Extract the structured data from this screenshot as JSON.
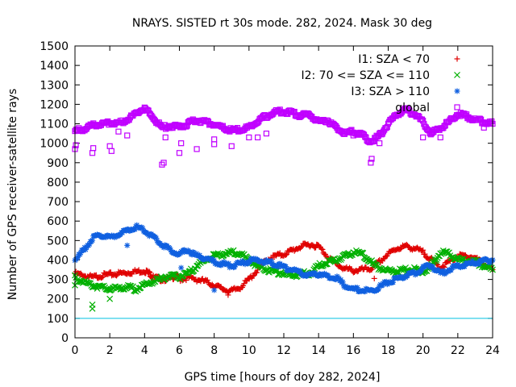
{
  "chart_data": {
    "type": "scatter",
    "title": "NRAYS. SISTED rt 30s mode. 282, 2024. Mask 30 deg",
    "xlabel": "GPS time [hours of doy 282, 2024]",
    "ylabel": "Number of GPS receiver-satellite rays",
    "xlim": [
      0,
      24
    ],
    "ylim": [
      0,
      1500
    ],
    "xticks": [
      0,
      2,
      4,
      6,
      8,
      10,
      12,
      14,
      16,
      18,
      20,
      22,
      24
    ],
    "yticks": [
      0,
      100,
      200,
      300,
      400,
      500,
      600,
      700,
      800,
      900,
      1000,
      1100,
      1200,
      1300,
      1400,
      1500
    ],
    "legend_position": "top-right",
    "reference_line": {
      "y": 100,
      "color": "#00c0e0"
    },
    "series": [
      {
        "name": "I1: SZA < 70",
        "marker": "+",
        "color": "#e00000",
        "points": [
          [
            0,
            330
          ],
          [
            0.5,
            320
          ],
          [
            1,
            310
          ],
          [
            1.5,
            320
          ],
          [
            2,
            325
          ],
          [
            2.5,
            330
          ],
          [
            3,
            335
          ],
          [
            3.5,
            340
          ],
          [
            4,
            345
          ],
          [
            4.3,
            330
          ],
          [
            4.5,
            310
          ],
          [
            5,
            300
          ],
          [
            5.5,
            305
          ],
          [
            5.8,
            320
          ],
          [
            6,
            300
          ],
          [
            6.5,
            310
          ],
          [
            7,
            300
          ],
          [
            7.5,
            290
          ],
          [
            8,
            270
          ],
          [
            8.5,
            250
          ],
          [
            9,
            240
          ],
          [
            9.5,
            260
          ],
          [
            10,
            300
          ],
          [
            10.5,
            350
          ],
          [
            11,
            400
          ],
          [
            11.5,
            420
          ],
          [
            12,
            430
          ],
          [
            12.5,
            450
          ],
          [
            13,
            470
          ],
          [
            13.5,
            480
          ],
          [
            14,
            470
          ],
          [
            14.5,
            420
          ],
          [
            15,
            380
          ],
          [
            15.5,
            355
          ],
          [
            16,
            345
          ],
          [
            16.5,
            350
          ],
          [
            17,
            355
          ],
          [
            17.5,
            390
          ],
          [
            18,
            430
          ],
          [
            18.5,
            460
          ],
          [
            19,
            470
          ],
          [
            19.5,
            460
          ],
          [
            20,
            440
          ],
          [
            20.5,
            400
          ],
          [
            21,
            360
          ],
          [
            21.5,
            390
          ],
          [
            22,
            420
          ],
          [
            22.5,
            420
          ],
          [
            23,
            410
          ],
          [
            23.5,
            380
          ],
          [
            24,
            350
          ]
        ],
        "outliers": [
          [
            8.8,
            220
          ],
          [
            17.2,
            305
          ]
        ]
      },
      {
        "name": "I2: 70 <= SZA <= 110",
        "marker": "x",
        "color": "#00b000",
        "points": [
          [
            0,
            310
          ],
          [
            0.5,
            290
          ],
          [
            1,
            270
          ],
          [
            1.5,
            260
          ],
          [
            2,
            250
          ],
          [
            2.5,
            255
          ],
          [
            3,
            260
          ],
          [
            3.5,
            250
          ],
          [
            4,
            270
          ],
          [
            4.5,
            290
          ],
          [
            5,
            305
          ],
          [
            5.5,
            320
          ],
          [
            6,
            310
          ],
          [
            6.5,
            330
          ],
          [
            7,
            370
          ],
          [
            7.5,
            400
          ],
          [
            8,
            420
          ],
          [
            8.5,
            430
          ],
          [
            9,
            440
          ],
          [
            9.5,
            430
          ],
          [
            10,
            400
          ],
          [
            10.5,
            370
          ],
          [
            11,
            350
          ],
          [
            11.5,
            340
          ],
          [
            12,
            330
          ],
          [
            12.5,
            320
          ],
          [
            13,
            330
          ],
          [
            13.5,
            330
          ],
          [
            14,
            370
          ],
          [
            14.5,
            390
          ],
          [
            15,
            400
          ],
          [
            15.5,
            420
          ],
          [
            16,
            440
          ],
          [
            16.5,
            430
          ],
          [
            17,
            390
          ],
          [
            17.5,
            360
          ],
          [
            18,
            345
          ],
          [
            18.5,
            340
          ],
          [
            19,
            350
          ],
          [
            19.5,
            350
          ],
          [
            20,
            340
          ],
          [
            20.5,
            370
          ],
          [
            21,
            440
          ],
          [
            21.5,
            430
          ],
          [
            22,
            400
          ],
          [
            22.5,
            395
          ],
          [
            23,
            390
          ],
          [
            23.5,
            370
          ],
          [
            24,
            350
          ]
        ],
        "outliers": [
          [
            0,
            270
          ],
          [
            1,
            150
          ],
          [
            1,
            170
          ],
          [
            2,
            200
          ]
        ]
      },
      {
        "name": "I3: SZA > 110",
        "marker": "*",
        "color": "#1060e0",
        "points": [
          [
            0,
            400
          ],
          [
            0.5,
            450
          ],
          [
            1,
            510
          ],
          [
            1.5,
            530
          ],
          [
            2,
            515
          ],
          [
            2.5,
            530
          ],
          [
            3,
            550
          ],
          [
            3.5,
            570
          ],
          [
            4,
            550
          ],
          [
            4.5,
            520
          ],
          [
            5,
            480
          ],
          [
            5.5,
            450
          ],
          [
            6,
            430
          ],
          [
            6.5,
            450
          ],
          [
            7,
            420
          ],
          [
            7.5,
            410
          ],
          [
            8,
            390
          ],
          [
            8.5,
            380
          ],
          [
            9,
            370
          ],
          [
            9.5,
            380
          ],
          [
            10,
            395
          ],
          [
            10.5,
            400
          ],
          [
            11,
            390
          ],
          [
            11.5,
            380
          ],
          [
            12,
            360
          ],
          [
            12.5,
            350
          ],
          [
            13,
            330
          ],
          [
            13.5,
            320
          ],
          [
            14,
            330
          ],
          [
            14.5,
            315
          ],
          [
            15,
            310
          ],
          [
            15.5,
            270
          ],
          [
            16,
            250
          ],
          [
            16.5,
            245
          ],
          [
            17,
            240
          ],
          [
            17.5,
            260
          ],
          [
            18,
            290
          ],
          [
            18.5,
            300
          ],
          [
            19,
            320
          ],
          [
            19.5,
            330
          ],
          [
            20,
            360
          ],
          [
            20.5,
            370
          ],
          [
            21,
            330
          ],
          [
            21.5,
            350
          ],
          [
            22,
            370
          ],
          [
            22.5,
            380
          ],
          [
            23,
            385
          ],
          [
            23.5,
            395
          ],
          [
            24,
            400
          ]
        ],
        "outliers": [
          [
            3,
            475
          ],
          [
            6.1,
            360
          ],
          [
            8,
            245
          ],
          [
            10.5,
            400
          ]
        ]
      },
      {
        "name": "global",
        "marker": "square",
        "color": "#c000ff",
        "points": [
          [
            0,
            1060
          ],
          [
            0.5,
            1075
          ],
          [
            1,
            1090
          ],
          [
            1.5,
            1100
          ],
          [
            2,
            1105
          ],
          [
            2.5,
            1100
          ],
          [
            3,
            1120
          ],
          [
            3.5,
            1150
          ],
          [
            4,
            1180
          ],
          [
            4.5,
            1130
          ],
          [
            5,
            1080
          ],
          [
            5.5,
            1090
          ],
          [
            6,
            1085
          ],
          [
            6.5,
            1100
          ],
          [
            7,
            1120
          ],
          [
            7.5,
            1110
          ],
          [
            8,
            1095
          ],
          [
            8.5,
            1080
          ],
          [
            9,
            1065
          ],
          [
            9.5,
            1070
          ],
          [
            10,
            1080
          ],
          [
            10.5,
            1110
          ],
          [
            11,
            1140
          ],
          [
            11.5,
            1160
          ],
          [
            12,
            1165
          ],
          [
            12.5,
            1155
          ],
          [
            13,
            1140
          ],
          [
            13.5,
            1150
          ],
          [
            14,
            1110
          ],
          [
            14.5,
            1120
          ],
          [
            15,
            1080
          ],
          [
            15.5,
            1050
          ],
          [
            16,
            1060
          ],
          [
            16.5,
            1040
          ],
          [
            17,
            1010
          ],
          [
            17.5,
            1040
          ],
          [
            18,
            1100
          ],
          [
            18.5,
            1150
          ],
          [
            19,
            1170
          ],
          [
            19.5,
            1150
          ],
          [
            20,
            1110
          ],
          [
            20.5,
            1050
          ],
          [
            21,
            1080
          ],
          [
            21.5,
            1110
          ],
          [
            22,
            1150
          ],
          [
            22.5,
            1140
          ],
          [
            23,
            1120
          ],
          [
            23.5,
            1110
          ],
          [
            24,
            1100
          ]
        ],
        "outliers": [
          [
            0,
            970
          ],
          [
            0.05,
            990
          ],
          [
            1,
            950
          ],
          [
            1.05,
            975
          ],
          [
            2,
            985
          ],
          [
            2.1,
            960
          ],
          [
            2.5,
            1060
          ],
          [
            3,
            1040
          ],
          [
            5,
            890
          ],
          [
            5.1,
            900
          ],
          [
            5.2,
            1030
          ],
          [
            6,
            950
          ],
          [
            6.1,
            1000
          ],
          [
            7,
            970
          ],
          [
            8,
            995
          ],
          [
            8,
            1020
          ],
          [
            9,
            985
          ],
          [
            10,
            1030
          ],
          [
            10.5,
            1030
          ],
          [
            11,
            1050
          ],
          [
            16,
            1040
          ],
          [
            17,
            900
          ],
          [
            17.05,
            920
          ],
          [
            17.5,
            1000
          ],
          [
            20,
            1030
          ],
          [
            20.5,
            1050
          ],
          [
            21,
            1030
          ],
          [
            23.5,
            1080
          ]
        ]
      }
    ]
  }
}
